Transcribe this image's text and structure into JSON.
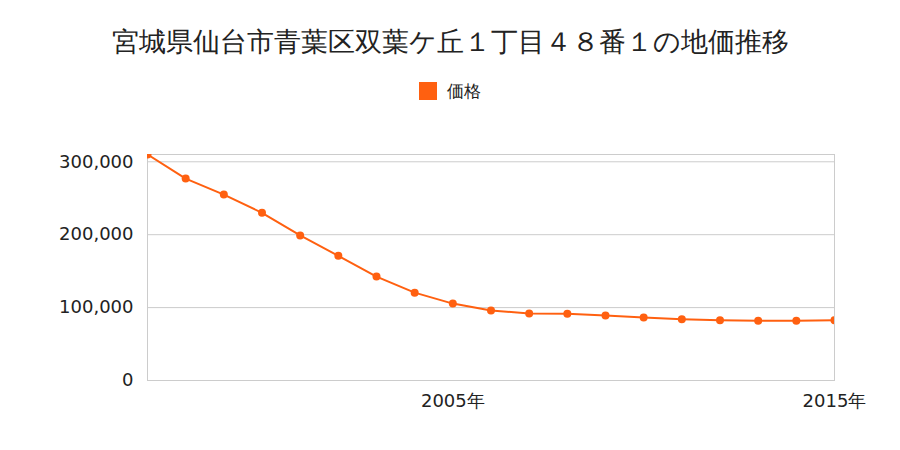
{
  "chart_data": {
    "type": "line",
    "title": "宮城県仙台市青葉区双葉ケ丘１丁目４８番１の地価推移",
    "x": [
      1997,
      1998,
      1999,
      2000,
      2001,
      2002,
      2003,
      2004,
      2005,
      2006,
      2007,
      2008,
      2009,
      2010,
      2011,
      2012,
      2013,
      2014,
      2015
    ],
    "series": [
      {
        "name": "価格",
        "color": "#ff6010",
        "marker": "circle",
        "values": [
          310000,
          277000,
          255000,
          230000,
          199000,
          171000,
          142500,
          120500,
          105500,
          96000,
          92000,
          91500,
          89000,
          86500,
          84000,
          82500,
          82000,
          82000,
          82500
        ]
      }
    ],
    "xlim": [
      1997,
      2015
    ],
    "xticks": [
      {
        "value": 2005,
        "label": "2005年"
      },
      {
        "value": 2015,
        "label": "2015年"
      }
    ],
    "ylim": [
      0,
      310000
    ],
    "yticks": [
      0,
      {
        "value": 100000,
        "label": "100,000"
      },
      {
        "value": 200000,
        "label": "200,000"
      },
      {
        "value": 300000,
        "label": "300,000"
      }
    ],
    "grid": true,
    "legend": "top"
  }
}
